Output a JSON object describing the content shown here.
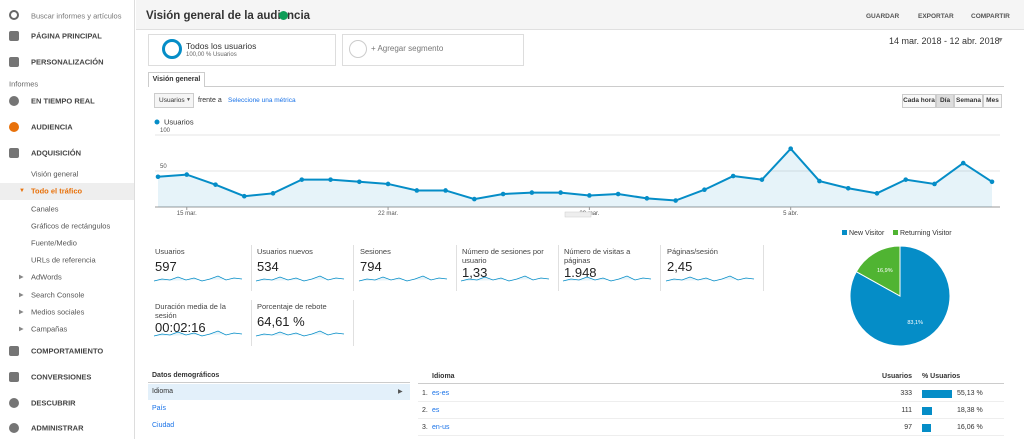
{
  "sidebar": {
    "search": "Buscar informes y artículos",
    "items": [
      "PÁGINA PRINCIPAL",
      "PERSONALIZACIÓN"
    ],
    "section": "Informes",
    "reports": [
      "EN TIEMPO REAL",
      "AUDIENCIA",
      "ADQUISICIÓN"
    ],
    "sub": [
      "Visión general",
      "Todo el tráfico",
      "Canales",
      "Gráficos de rectángulos",
      "Fuente/Medio",
      "URLs de referencia",
      "AdWords",
      "Search Console",
      "Medios sociales",
      "Campañas"
    ],
    "bottom": [
      "COMPORTAMIENTO",
      "CONVERSIONES",
      "DESCUBRIR",
      "ADMINISTRAR"
    ]
  },
  "header": {
    "title": "Visión general de la audiencia",
    "actions": [
      "GUARDAR",
      "EXPORTAR",
      "COMPARTIR"
    ]
  },
  "segments": {
    "name": "Todos los usuarios",
    "detail": "100,00 % Usuarios",
    "add": "+ Agregar segmento"
  },
  "date_range": "14 mar. 2018 - 12 abr. 2018",
  "tab": "Visión general",
  "controls": {
    "metric": "Usuarios",
    "versus": "frente a",
    "select": "Seleccione una métrica",
    "periods": [
      "Cada hora",
      "Día",
      "Semana",
      "Mes"
    ]
  },
  "chart_data": [
    {
      "type": "line",
      "categories": [
        null,
        "15 mar.",
        null,
        null,
        null,
        null,
        null,
        null,
        "22 mar.",
        null,
        null,
        null,
        null,
        null,
        null,
        "29 mar.",
        null,
        null,
        null,
        null,
        null,
        null,
        "5 abr.",
        null,
        null,
        null,
        null,
        null,
        null,
        null
      ],
      "series": [
        {
          "name": "Usuarios",
          "color": "#058dc7",
          "values": [
            42,
            45,
            31,
            15,
            19,
            38,
            38,
            35,
            32,
            23,
            23,
            11,
            18,
            20,
            20,
            16,
            18,
            12,
            9,
            24,
            43,
            38,
            81,
            36,
            26,
            19,
            38,
            32,
            61,
            35
          ]
        }
      ],
      "ylim": [
        0,
        100
      ],
      "yticks": [
        50,
        100
      ],
      "grid": true
    },
    {
      "type": "pie",
      "categories": [
        "New Visitor",
        "Returning Visitor"
      ],
      "values": [
        83.1,
        16.9
      ],
      "value_labels": [
        "83,1%",
        "16,9%"
      ],
      "colors": [
        "#058dc7",
        "#50b432"
      ]
    }
  ],
  "metrics": [
    {
      "label": "Usuarios",
      "value": "597"
    },
    {
      "label": "Usuarios nuevos",
      "value": "534"
    },
    {
      "label": "Sesiones",
      "value": "794"
    },
    {
      "label": "Número de sesiones por usuario",
      "value": "1,33"
    },
    {
      "label": "Número de visitas a páginas",
      "value": "1.948"
    },
    {
      "label": "Páginas/sesión",
      "value": "2,45"
    },
    {
      "label": "Duración media de la sesión",
      "value": "00:02:16"
    },
    {
      "label": "Porcentaje de rebote",
      "value": "64,61 %"
    }
  ],
  "demographics": {
    "title": "Datos demográficos",
    "items": [
      "Idioma",
      "País",
      "Ciudad"
    ]
  },
  "table": {
    "headers": [
      "Idioma",
      "Usuarios",
      "% Usuarios"
    ],
    "rows": [
      {
        "rank": "1.",
        "name": "es-es",
        "users": 333,
        "pct": 55.13,
        "pct_label": "55,13 %"
      },
      {
        "rank": "2.",
        "name": "es",
        "users": 111,
        "pct": 18.38,
        "pct_label": "18,38 %"
      },
      {
        "rank": "3.",
        "name": "en-us",
        "users": 97,
        "pct": 16.06,
        "pct_label": "16,06 %"
      }
    ]
  }
}
